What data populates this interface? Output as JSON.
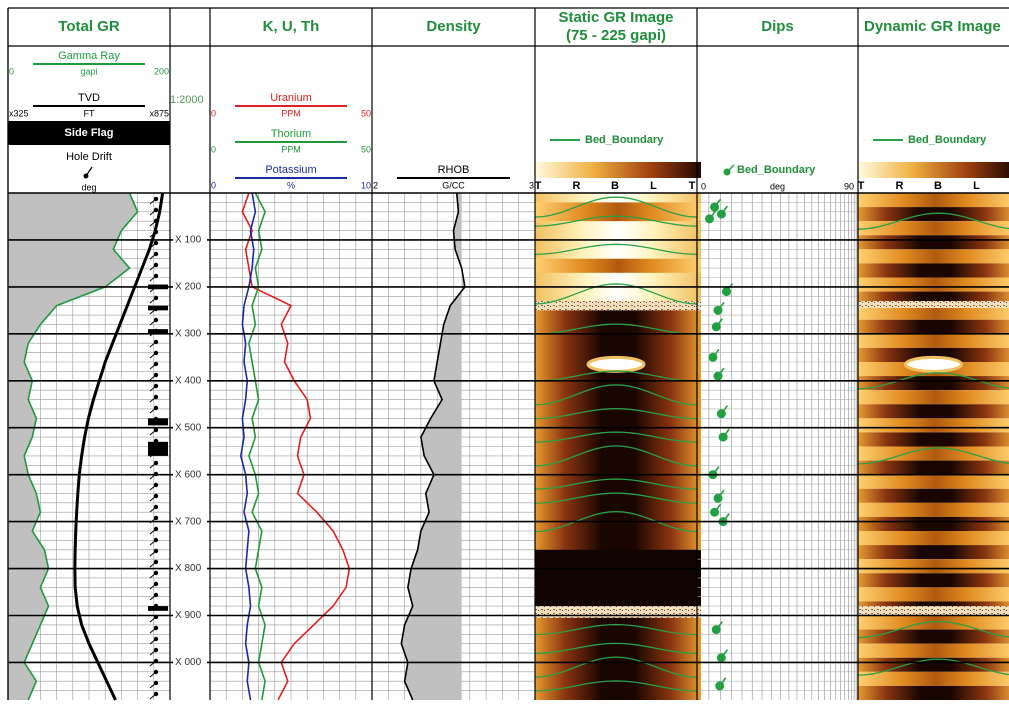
{
  "chart_data": {
    "type": "log",
    "ylim": [
      0,
      1080
    ],
    "depth": [
      0,
      40,
      80,
      120,
      160,
      200,
      240,
      280,
      320,
      360,
      400,
      440,
      480,
      520,
      560,
      600,
      640,
      680,
      720,
      760,
      800,
      840,
      880,
      920,
      960,
      1000,
      1040,
      1080
    ],
    "yticks": [
      {
        "value": 100,
        "label": "X 100"
      },
      {
        "value": 200,
        "label": "X 200"
      },
      {
        "value": 300,
        "label": "X 300"
      },
      {
        "value": 400,
        "label": "X 400"
      },
      {
        "value": 500,
        "label": "X 500"
      },
      {
        "value": 600,
        "label": "X 600"
      },
      {
        "value": 700,
        "label": "X 700"
      },
      {
        "value": 800,
        "label": "X 800"
      },
      {
        "value": 900,
        "label": "X 900"
      },
      {
        "value": 1000,
        "label": "X 000"
      }
    ],
    "scale_label": "1:2000",
    "grid": true,
    "tracks": [
      {
        "type": "line",
        "title": "Total GR",
        "curves": [
          {
            "name": "Gamma Ray",
            "unit": "gapi",
            "color": "#1f9a3a",
            "xlim": [
              0,
              200
            ],
            "xticks": [
              0,
              200
            ],
            "fill": "#c0c0c0",
            "fill_to": 0,
            "values": [
              150,
              160,
              140,
              130,
              150,
              120,
              60,
              40,
              25,
              20,
              30,
              25,
              35,
              30,
              20,
              25,
              35,
              40,
              30,
              45,
              50,
              40,
              50,
              40,
              30,
              20,
              35,
              25
            ]
          },
          {
            "name": "TVD",
            "unit": "FT",
            "color": "#000000",
            "xlim": [
              325,
              875
            ],
            "xticks": [
              {
                "value": 325,
                "label": "x325"
              },
              {
                "value": 875,
                "label": "x875"
              }
            ],
            "values": [
              850,
              840,
              825,
              805,
              780,
              755,
              730,
              705,
              680,
              655,
              635,
              615,
              598,
              585,
              575,
              567,
              562,
              558,
              555,
              553,
              552,
              553,
              560,
              575,
              600,
              630,
              660,
              690
            ]
          }
        ],
        "flags": [
          {
            "name": "Side Flag"
          },
          {
            "name": "Hole Drift",
            "unit": "deg"
          }
        ]
      },
      {
        "type": "line",
        "title": "K, U, Th",
        "curves": [
          {
            "name": "Uranium",
            "unit": "PPM",
            "color": "#e02020",
            "xlim": [
              0,
              50
            ],
            "xticks": [
              0,
              50
            ],
            "values": [
              12,
              10,
              13,
              11,
              12,
              13,
              25,
              22,
              24,
              23,
              26,
              30,
              31,
              28,
              27,
              29,
              27,
              33,
              38,
              41,
              43,
              42,
              38,
              32,
              26,
              22,
              24,
              21
            ]
          },
          {
            "name": "Thorium",
            "unit": "PPM",
            "color": "#1f9a3a",
            "xlim": [
              0,
              50
            ],
            "xticks": [
              0,
              50
            ],
            "values": [
              14,
              17,
              15,
              16,
              14,
              15,
              13,
              14,
              12,
              13,
              14,
              15,
              13,
              14,
              12,
              14,
              15,
              13,
              16,
              15,
              14,
              16,
              15,
              17,
              16,
              15,
              17,
              16
            ]
          },
          {
            "name": "Potassium",
            "unit": "%",
            "color": "#1a2aa0",
            "xlim": [
              0,
              10
            ],
            "xticks": [
              0,
              10
            ],
            "values": [
              2.6,
              2.8,
              2.5,
              2.7,
              2.6,
              2.4,
              2.1,
              2.0,
              2.2,
              2.1,
              2.3,
              2.2,
              2.0,
              2.1,
              1.9,
              2.2,
              2.3,
              2.1,
              2.4,
              2.3,
              2.2,
              2.4,
              2.5,
              2.3,
              2.2,
              2.4,
              2.3,
              2.5
            ]
          }
        ]
      },
      {
        "type": "line",
        "title": "Density",
        "curves": [
          {
            "name": "RHOB",
            "unit": "G/CC",
            "color": "#000000",
            "xlim": [
              2,
              3
            ],
            "xticks": [
              2,
              3
            ],
            "fill": "#c0c0c0",
            "fill_to": 2.55,
            "values": [
              2.52,
              2.53,
              2.5,
              2.51,
              2.55,
              2.57,
              2.48,
              2.44,
              2.42,
              2.4,
              2.38,
              2.43,
              2.36,
              2.3,
              2.32,
              2.38,
              2.33,
              2.35,
              2.3,
              2.28,
              2.24,
              2.22,
              2.25,
              2.2,
              2.18,
              2.22,
              2.2,
              2.25
            ]
          }
        ]
      },
      {
        "type": "image",
        "title": "Static GR Image",
        "subtitle": "(75 - 225 gapi)",
        "legend": "Bed_Boundary",
        "orientation_labels": [
          "T",
          "R",
          "B",
          "L",
          "T"
        ]
      },
      {
        "type": "dips",
        "title": "Dips",
        "legend": "Bed_Boundary",
        "xlim": [
          0,
          90
        ],
        "xticks": [
          0,
          90
        ],
        "unit": "deg",
        "depth": [
          30,
          45,
          55,
          210,
          250,
          285,
          350,
          390,
          470,
          520,
          600,
          650,
          680,
          700,
          930,
          990,
          1050
        ],
        "values": [
          8,
          12,
          5,
          15,
          10,
          9,
          7,
          10,
          12,
          13,
          7,
          10,
          8,
          13,
          9,
          12,
          11
        ]
      },
      {
        "type": "image",
        "title": "Dynamic GR Image",
        "legend": "Bed_Boundary",
        "orientation_labels": [
          "T",
          "R",
          "B",
          "L"
        ]
      }
    ]
  }
}
